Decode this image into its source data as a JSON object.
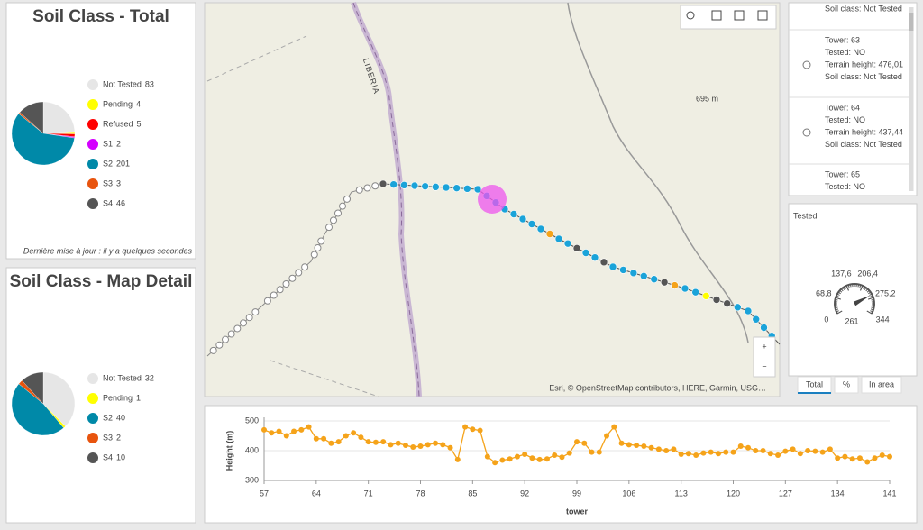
{
  "chart_data": [
    {
      "type": "pie",
      "title": "Soil Class - Total",
      "categories": [
        "Not Tested",
        "Pending",
        "Refused",
        "S1",
        "S2",
        "S3",
        "S4"
      ],
      "values": [
        83,
        4,
        5,
        2,
        201,
        3,
        46
      ],
      "colors": [
        "#e6e6e6",
        "#ffff00",
        "#ff0000",
        "#d400ff",
        "#0089a8",
        "#e8540e",
        "#555555"
      ],
      "footnote": "Dernière mise à jour : il y a quelques secondes"
    },
    {
      "type": "pie",
      "title": "Soil Class - Map Detail",
      "categories": [
        "Not Tested",
        "Pending",
        "S2",
        "S3",
        "S4"
      ],
      "values": [
        32,
        1,
        40,
        2,
        10
      ],
      "colors": [
        "#e6e6e6",
        "#ffff00",
        "#0089a8",
        "#e8540e",
        "#555555"
      ]
    },
    {
      "type": "gauge",
      "title": "Tested",
      "value": 261,
      "ylim": [
        0,
        344
      ],
      "yticks": [
        0,
        {
          "value": 68.8,
          "label": "68,8"
        },
        {
          "value": 137.6,
          "label": "137,6"
        },
        {
          "value": 206.4,
          "label": "206,4"
        },
        {
          "value": 275.2,
          "label": "275,2"
        },
        344
      ]
    },
    {
      "type": "line",
      "y_label": "Height (m)",
      "x_label": "tower",
      "color": "#f5a31a",
      "grid": true,
      "x": [
        57,
        58,
        59,
        60,
        61,
        62,
        63,
        64,
        65,
        66,
        67,
        68,
        69,
        70,
        71,
        72,
        73,
        74,
        75,
        76,
        77,
        78,
        79,
        80,
        81,
        82,
        83,
        84,
        85,
        86,
        87,
        88,
        89,
        90,
        91,
        92,
        93,
        94,
        95,
        96,
        97,
        98,
        99,
        100,
        101,
        102,
        103,
        104,
        105,
        106,
        107,
        108,
        109,
        110,
        111,
        112,
        113,
        114,
        115,
        116,
        117,
        118,
        119,
        120,
        121,
        122,
        123,
        124,
        125,
        126,
        127,
        128,
        129,
        130,
        131,
        132,
        133,
        134,
        135,
        136,
        137,
        138,
        139,
        140,
        141
      ],
      "values": [
        470,
        460,
        465,
        450,
        465,
        470,
        480,
        440,
        440,
        425,
        430,
        450,
        460,
        445,
        430,
        428,
        430,
        420,
        425,
        418,
        412,
        415,
        420,
        425,
        420,
        410,
        370,
        480,
        472,
        468,
        380,
        360,
        368,
        372,
        380,
        388,
        375,
        370,
        372,
        385,
        378,
        392,
        430,
        425,
        395,
        395,
        450,
        480,
        425,
        420,
        418,
        415,
        410,
        405,
        400,
        405,
        388,
        390,
        385,
        392,
        395,
        390,
        395,
        395,
        415,
        410,
        400,
        400,
        390,
        385,
        398,
        405,
        390,
        400,
        398,
        395,
        405,
        375,
        380,
        372,
        375,
        362,
        375,
        385,
        380
      ],
      "xlim": [
        57,
        141
      ],
      "xticks": [
        57,
        64,
        71,
        78,
        85,
        92,
        99,
        106,
        113,
        120,
        127,
        134,
        141
      ],
      "ylim": [
        300,
        500
      ],
      "yticks": [
        300,
        400,
        500
      ]
    }
  ],
  "map": {
    "labels": [
      "LIBERIA",
      "695 m"
    ],
    "attribution": "Esri, © OpenStreetMap contributors, HERE, Garmin, USG…",
    "zoom": [
      "+",
      "−"
    ]
  },
  "list": {
    "items": [
      {
        "lines": [
          "Soil class: Not Tested"
        ]
      },
      {
        "lines": [
          "Tower: 63",
          "Tested: NO",
          "Terrain height: 476,01",
          "Soil class: Not Tested"
        ]
      },
      {
        "lines": [
          "Tower: 64",
          "Tested: NO",
          "Terrain height: 437,44",
          "Soil class: Not Tested"
        ]
      },
      {
        "lines": [
          "Tower: 65",
          "Tested: NO"
        ]
      }
    ]
  },
  "tabs": [
    "Total",
    "%",
    "In area"
  ]
}
